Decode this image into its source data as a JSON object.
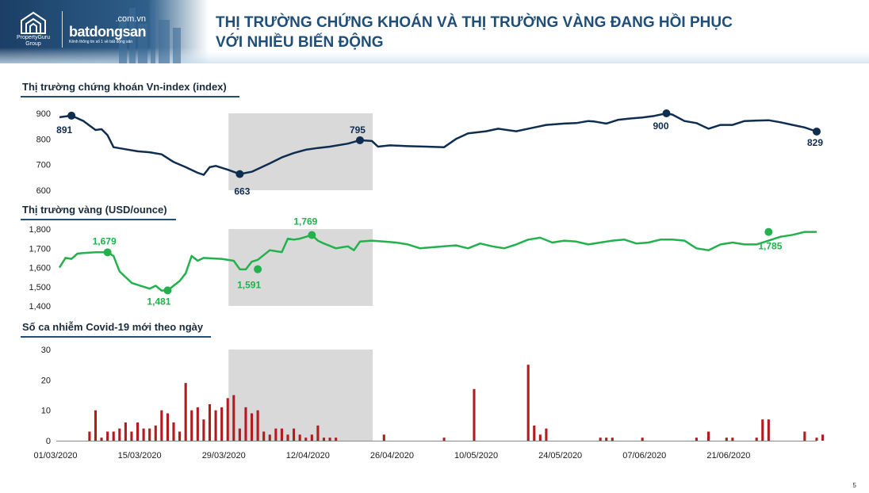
{
  "header": {
    "title_line1": "THỊ TRƯỜNG CHỨNG KHOÁN VÀ THỊ TRƯỜNG VÀNG ĐANG HỒI PHỤC",
    "title_line2": "VỚI NHIỀU BIẾN ĐỘNG",
    "brand_pg": "PropertyGuru",
    "brand_pg_sub": "Group",
    "brand_bds_domain": ".com.vn",
    "brand_bds": "batdongsan",
    "brand_bds_tagline": "Kênh thông tin số 1 về bất động sản"
  },
  "page_number": "5",
  "colors": {
    "title": "#1f4e79",
    "vnindex": "#0f2d4f",
    "gold": "#22b14c",
    "covid": "#b01c20",
    "highlight": "#d9d9d9"
  },
  "chart_data": [
    {
      "type": "line",
      "title": "Thị trường chứng khoán Vn-index (index)",
      "ylim": [
        600,
        900
      ],
      "yticks": [
        "900",
        "800",
        "700",
        "600"
      ],
      "x": [
        0,
        3,
        6,
        9,
        12,
        15,
        18,
        21,
        24,
        27,
        30,
        33,
        36,
        39,
        42,
        45,
        48,
        51,
        54,
        57,
        60,
        63,
        66,
        69,
        72,
        75,
        78,
        81,
        84,
        87,
        90,
        93,
        96,
        99,
        102,
        105,
        108,
        111,
        114,
        117
      ],
      "series": [
        {
          "values": [
            885,
            891,
            870,
            835,
            838,
            815,
            768,
            760,
            752,
            748,
            740,
            710,
            690,
            668,
            660,
            690,
            695,
            680,
            663,
            672,
            705,
            728,
            745,
            758,
            765,
            770,
            782,
            795,
            792,
            770,
            775,
            772,
            770,
            768,
            800,
            822,
            830,
            840,
            830,
            845,
            855,
            860,
            862,
            870,
            868,
            860,
            875,
            880,
            884,
            890,
            900,
            895,
            870,
            862,
            840,
            855,
            855,
            870,
            872,
            873,
            865,
            855,
            845,
            829
          ],
          "x": [
            0,
            2,
            4,
            6,
            7,
            8,
            9,
            11,
            13,
            15,
            17,
            19,
            21,
            23,
            24,
            25,
            26,
            28,
            30,
            32,
            35,
            37,
            39,
            41,
            43,
            45,
            48,
            50,
            52,
            53,
            55,
            58,
            61,
            64,
            66,
            68,
            71,
            73,
            76,
            79,
            81,
            84,
            86,
            88,
            89,
            91,
            93,
            95,
            97,
            99,
            101,
            102,
            104,
            106,
            108,
            110,
            112,
            114,
            116,
            118,
            120,
            122,
            124,
            126
          ]
        }
      ],
      "annotations": [
        {
          "label": "891",
          "x": 2,
          "value": 891
        },
        {
          "label": "663",
          "x": 30,
          "value": 663
        },
        {
          "label": "795",
          "x": 50,
          "value": 795
        },
        {
          "label": "900",
          "x": 101,
          "value": 900
        },
        {
          "label": "829",
          "x": 126,
          "value": 829
        }
      ]
    },
    {
      "type": "line",
      "title": "Thị trường vàng (USD/ounce)",
      "ylim": [
        1400,
        1800
      ],
      "yticks": [
        "1,800",
        "1,700",
        "1,600",
        "1,500",
        "1,400"
      ],
      "series": [
        {
          "x": [
            0,
            1,
            2,
            3,
            4,
            6,
            8,
            9,
            10,
            12,
            14,
            15,
            16,
            17,
            18,
            20,
            21,
            22,
            23,
            24,
            25,
            27,
            29,
            30,
            31,
            32,
            33,
            35,
            37,
            38,
            39,
            40,
            42,
            43,
            44,
            46,
            47,
            48,
            49,
            50,
            52,
            54,
            56,
            58,
            60,
            62,
            64,
            66,
            68,
            70,
            72,
            74,
            76,
            78,
            80,
            82,
            84,
            86,
            88,
            90,
            92,
            94,
            96,
            98,
            100,
            102,
            104,
            106,
            108,
            110,
            112,
            114,
            116,
            118,
            120,
            122,
            124,
            126
          ],
          "values": [
            1600,
            1650,
            1645,
            1672,
            1675,
            1679,
            1679,
            1660,
            1580,
            1520,
            1500,
            1490,
            1505,
            1480,
            1481,
            1530,
            1570,
            1660,
            1635,
            1650,
            1648,
            1645,
            1635,
            1591,
            1590,
            1630,
            1640,
            1690,
            1680,
            1750,
            1745,
            1750,
            1769,
            1740,
            1725,
            1700,
            1705,
            1710,
            1690,
            1735,
            1740,
            1735,
            1730,
            1720,
            1700,
            1705,
            1710,
            1715,
            1700,
            1725,
            1710,
            1700,
            1720,
            1745,
            1755,
            1730,
            1740,
            1735,
            1720,
            1730,
            1740,
            1745,
            1725,
            1730,
            1745,
            1745,
            1740,
            1700,
            1690,
            1720,
            1730,
            1720,
            1720,
            1740,
            1760,
            1770,
            1785,
            1785
          ]
        }
      ],
      "annotations": [
        {
          "label": "1,679",
          "x": 8,
          "value": 1679
        },
        {
          "label": "1,481",
          "x": 18,
          "value": 1481
        },
        {
          "label": "1,591",
          "x": 33,
          "value": 1591
        },
        {
          "label": "1,769",
          "x": 42,
          "value": 1769
        },
        {
          "label": "1,785",
          "x": 118,
          "value": 1785
        }
      ]
    },
    {
      "type": "bar",
      "title": "Số ca nhiễm Covid-19 mới theo ngày",
      "ylim": [
        0,
        30
      ],
      "yticks": [
        "30",
        "20",
        "10",
        "0"
      ],
      "x_labels": [
        "01/03/2020",
        "15/03/2020",
        "29/03/2020",
        "12/04/2020",
        "26/04/2020",
        "10/05/2020",
        "24/05/2020",
        "07/06/2020",
        "21/06/2020"
      ],
      "values": [
        0,
        0,
        0,
        0,
        0,
        3,
        10,
        1,
        3,
        3,
        4,
        6,
        3,
        6,
        4,
        4,
        5,
        10,
        9,
        6,
        3,
        19,
        10,
        11,
        7,
        12,
        10,
        11,
        14,
        15,
        4,
        11,
        9,
        10,
        3,
        2,
        4,
        4,
        2,
        4,
        2,
        1,
        2,
        5,
        1,
        1,
        1,
        0,
        0,
        0,
        0,
        0,
        0,
        0,
        2,
        0,
        0,
        0,
        0,
        0,
        0,
        0,
        0,
        0,
        1,
        0,
        0,
        0,
        0,
        17,
        0,
        0,
        0,
        0,
        0,
        0,
        0,
        0,
        25,
        5,
        2,
        4,
        0,
        0,
        0,
        0,
        0,
        0,
        0,
        0,
        1,
        1,
        1,
        0,
        0,
        0,
        0,
        1,
        0,
        0,
        0,
        0,
        0,
        0,
        0,
        0,
        1,
        0,
        3,
        0,
        0,
        1,
        1,
        0,
        0,
        0,
        1,
        7,
        7,
        0,
        0,
        0,
        0,
        0,
        3,
        0,
        1,
        2,
        0
      ],
      "highlight_range": [
        "29/03/2020",
        "22/04/2020"
      ]
    }
  ]
}
